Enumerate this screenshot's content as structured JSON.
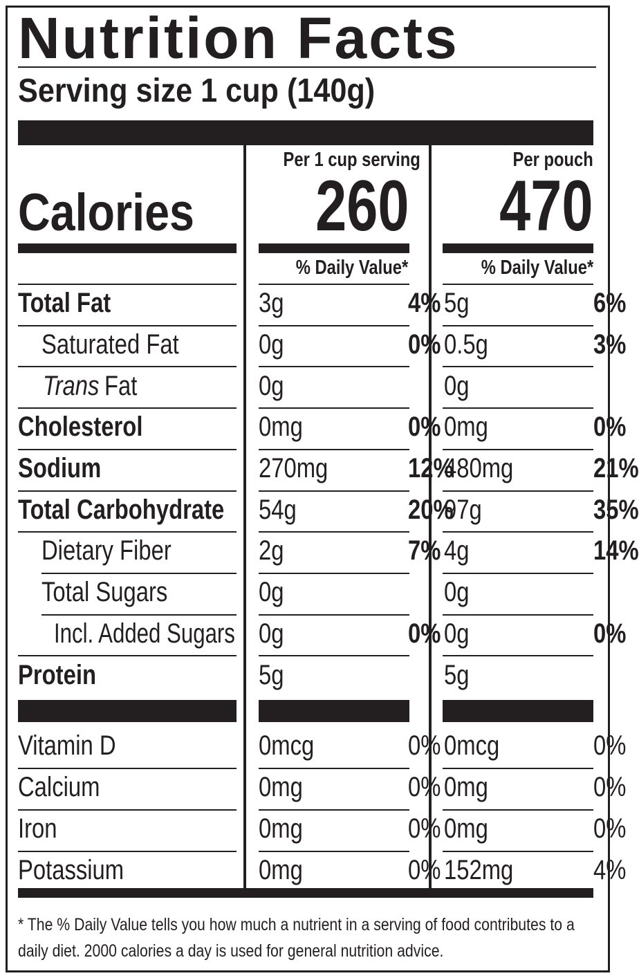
{
  "title": "Nutrition Facts",
  "serving_size": "Serving size 1 cup (140g)",
  "calories_label": "Calories",
  "columns": [
    {
      "header": "Per 1 cup serving",
      "calories": "260",
      "dv_header": "% Daily Value*"
    },
    {
      "header": "Per pouch",
      "calories": "470",
      "dv_header": "% Daily Value*"
    }
  ],
  "nutrients": [
    {
      "name": "Total Fat",
      "cells": [
        {
          "amount": "3g",
          "dv": "4%"
        },
        {
          "amount": "5g",
          "dv": "6%"
        }
      ]
    },
    {
      "name": "Saturated Fat",
      "cells": [
        {
          "amount": "0g",
          "dv": "0%"
        },
        {
          "amount": "0.5g",
          "dv": "3%"
        }
      ]
    },
    {
      "name_italic": "Trans",
      "name": "Fat",
      "cells": [
        {
          "amount": "0g"
        },
        {
          "amount": "0g"
        }
      ]
    },
    {
      "name": "Cholesterol",
      "cells": [
        {
          "amount": "0mg",
          "dv": "0%"
        },
        {
          "amount": "0mg",
          "dv": "0%"
        }
      ]
    },
    {
      "name": "Sodium",
      "cells": [
        {
          "amount": "270mg",
          "dv": "12%"
        },
        {
          "amount": "480mg",
          "dv": "21%"
        }
      ]
    },
    {
      "name": "Total Carbohydrate",
      "cells": [
        {
          "amount": "54g",
          "dv": "20%"
        },
        {
          "amount": "97g",
          "dv": "35%"
        }
      ]
    },
    {
      "name": "Dietary Fiber",
      "cells": [
        {
          "amount": "2g",
          "dv": "7%"
        },
        {
          "amount": "4g",
          "dv": "14%"
        }
      ]
    },
    {
      "name": "Total Sugars",
      "cells": [
        {
          "amount": "0g"
        },
        {
          "amount": "0g"
        }
      ]
    },
    {
      "name": "Incl. Added Sugars",
      "cells": [
        {
          "amount": "0g",
          "dv": "0%"
        },
        {
          "amount": "0g",
          "dv": "0%"
        }
      ]
    },
    {
      "name": "Protein",
      "cells": [
        {
          "amount": "5g"
        },
        {
          "amount": "5g"
        }
      ]
    }
  ],
  "vitamins": [
    {
      "name": "Vitamin D",
      "cells": [
        {
          "amount": "0mcg",
          "dv": "0%"
        },
        {
          "amount": "0mcg",
          "dv": "0%"
        }
      ]
    },
    {
      "name": "Calcium",
      "cells": [
        {
          "amount": "0mg",
          "dv": "0%"
        },
        {
          "amount": "0mg",
          "dv": "0%"
        }
      ]
    },
    {
      "name": "Iron",
      "cells": [
        {
          "amount": "0mg",
          "dv": "0%"
        },
        {
          "amount": "0mg",
          "dv": "0%"
        }
      ]
    },
    {
      "name": "Potassium",
      "cells": [
        {
          "amount": "0mg",
          "dv": "0%"
        },
        {
          "amount": "152mg",
          "dv": "4%"
        }
      ]
    }
  ],
  "footnote": "* The % Daily Value tells you how much a nutrient in a serving of food contributes to a daily diet. 2000 calories a day is used for general nutrition advice."
}
